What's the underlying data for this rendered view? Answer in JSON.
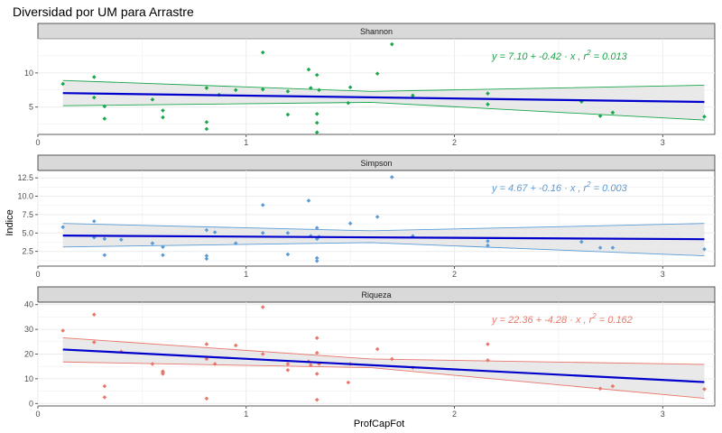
{
  "chart_data": {
    "type": "scatter",
    "title": "Diversidad por UM para Arrastre",
    "xlabel": "ProfCapFot",
    "ylabel": "Indice",
    "xlim": [
      0,
      3.25
    ],
    "x_ticks": [
      0,
      1,
      2,
      3
    ],
    "colors": {
      "fit_line": "#0000cd",
      "band_fill": "#e5e5e5",
      "strip_fill": "#d9d9d9",
      "grid": "#ebebeb"
    },
    "panels": [
      {
        "name": "Shannon",
        "color": "#1aa64a",
        "equation": "y = 7.10 + -0.42 · x ,  r",
        "equation_exp": "2",
        "equation_tail": " = 0.013",
        "ylim": [
          1,
          15
        ],
        "y_ticks": [
          5,
          10
        ],
        "fit": {
          "intercept": 7.1,
          "slope": -0.42
        },
        "band_lower": [
          [
            0.12,
            5.2
          ],
          [
            1.6,
            5.7
          ],
          [
            3.2,
            3.1
          ]
        ],
        "band_upper": [
          [
            0.12,
            8.9
          ],
          [
            1.6,
            7.3
          ],
          [
            3.2,
            8.2
          ]
        ],
        "x": [
          0.12,
          0.27,
          0.27,
          0.32,
          0.32,
          0.55,
          0.6,
          0.6,
          0.81,
          0.81,
          0.81,
          0.87,
          0.95,
          1.08,
          1.08,
          1.2,
          1.2,
          1.3,
          1.31,
          1.34,
          1.34,
          1.34,
          1.34,
          1.35,
          1.49,
          1.5,
          1.63,
          1.7,
          1.8,
          2.16,
          2.16,
          2.61,
          2.7,
          2.76,
          3.2
        ],
        "y": [
          8.4,
          9.4,
          6.4,
          3.3,
          5.1,
          6.1,
          4.5,
          3.5,
          7.8,
          2.8,
          1.8,
          6.8,
          7.5,
          13.0,
          7.6,
          3.9,
          7.3,
          10.5,
          7.8,
          9.7,
          4.0,
          2.7,
          1.3,
          7.5,
          5.6,
          7.9,
          9.9,
          14.2,
          6.7,
          7.0,
          5.4,
          5.8,
          3.7,
          4.2,
          3.6
        ]
      },
      {
        "name": "Simpson",
        "color": "#5b9bd5",
        "equation": "y = 4.67 + -0.16 · x ,  r",
        "equation_exp": "2",
        "equation_tail": " = 0.003",
        "ylim": [
          0.5,
          13.5
        ],
        "y_ticks": [
          2.5,
          5.0,
          7.5,
          10.0,
          12.5
        ],
        "fit": {
          "intercept": 4.67,
          "slope": -0.16
        },
        "band_lower": [
          [
            0.12,
            3.1
          ],
          [
            1.6,
            3.7
          ],
          [
            3.2,
            1.9
          ]
        ],
        "band_upper": [
          [
            0.12,
            6.3
          ],
          [
            1.6,
            5.3
          ],
          [
            3.2,
            6.3
          ]
        ],
        "x": [
          0.12,
          0.27,
          0.27,
          0.32,
          0.32,
          0.4,
          0.55,
          0.6,
          0.6,
          0.81,
          0.81,
          0.81,
          0.85,
          0.95,
          1.08,
          1.08,
          1.2,
          1.2,
          1.3,
          1.31,
          1.34,
          1.34,
          1.34,
          1.34,
          1.35,
          1.5,
          1.63,
          1.7,
          1.8,
          2.16,
          2.16,
          2.61,
          2.7,
          2.76,
          3.2
        ],
        "y": [
          5.8,
          6.6,
          4.4,
          4.2,
          2.0,
          4.1,
          3.6,
          3.1,
          2.0,
          5.4,
          1.9,
          1.5,
          5.1,
          3.6,
          8.8,
          5.0,
          2.1,
          5.0,
          9.4,
          4.6,
          5.7,
          4.2,
          1.6,
          1.2,
          4.5,
          6.3,
          7.2,
          12.6,
          4.6,
          3.9,
          3.3,
          3.8,
          3.0,
          3.0,
          2.8
        ]
      },
      {
        "name": "Riqueza",
        "color": "#e8776b",
        "equation": "y = 22.36 + -4.28 · x ,  r",
        "equation_exp": "2",
        "equation_tail": " = 0.162",
        "ylim": [
          -1,
          41
        ],
        "y_ticks": [
          0,
          10,
          20,
          30,
          40
        ],
        "fit": {
          "intercept": 22.36,
          "slope": -4.28
        },
        "band_lower": [
          [
            0.12,
            16.8
          ],
          [
            1.6,
            14.5
          ],
          [
            3.2,
            2.1
          ]
        ],
        "band_upper": [
          [
            0.12,
            26.6
          ],
          [
            1.6,
            18.0
          ],
          [
            3.2,
            15.8
          ]
        ],
        "x": [
          0.12,
          0.27,
          0.27,
          0.32,
          0.32,
          0.4,
          0.55,
          0.6,
          0.6,
          0.6,
          0.81,
          0.81,
          0.81,
          0.85,
          0.95,
          1.08,
          1.08,
          1.2,
          1.2,
          1.3,
          1.31,
          1.34,
          1.34,
          1.34,
          1.34,
          1.35,
          1.49,
          1.5,
          1.63,
          1.7,
          1.8,
          2.16,
          2.16,
          2.7,
          2.76,
          3.2
        ],
        "y": [
          29.5,
          36.0,
          24.8,
          7.0,
          2.5,
          21.0,
          16.0,
          13.0,
          12.0,
          12.5,
          24.0,
          18.0,
          2.0,
          16.0,
          23.5,
          39.0,
          20.0,
          16.0,
          13.5,
          17.0,
          15.5,
          26.5,
          20.5,
          12.0,
          1.5,
          16.0,
          8.5,
          16.0,
          22.0,
          18.0,
          14.5,
          24.0,
          17.5,
          6.0,
          7.0,
          5.8
        ]
      }
    ]
  }
}
